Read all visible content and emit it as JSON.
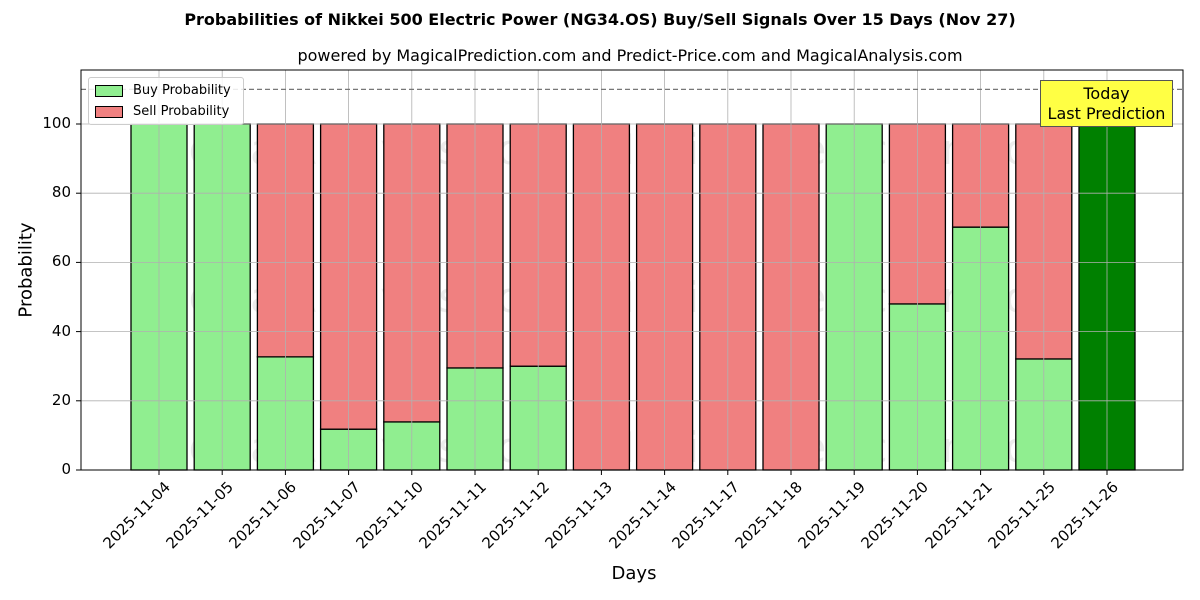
{
  "chart_data": {
    "type": "bar",
    "stacked": true,
    "title": "Probabilities of Nikkei 500 Electric Power (NG34.OS) Buy/Sell Signals Over 15 Days (Nov 27)",
    "subtitle": "powered by MagicalPrediction.com and Predict-Price.com and MagicalAnalysis.com",
    "xlabel": "Days",
    "ylabel": "Probability",
    "ylim": [
      0,
      115
    ],
    "yticks": [
      0,
      20,
      40,
      60,
      80,
      100
    ],
    "grid": true,
    "reference_line": 110,
    "legend_position": "upper left",
    "categories": [
      "2025-11-04",
      "2025-11-05",
      "2025-11-06",
      "2025-11-07",
      "2025-11-10",
      "2025-11-11",
      "2025-11-12",
      "2025-11-13",
      "2025-11-14",
      "2025-11-17",
      "2025-11-18",
      "2025-11-19",
      "2025-11-20",
      "2025-11-21",
      "2025-11-25",
      "2025-11-26"
    ],
    "series": [
      {
        "name": "Buy Probability",
        "color": "#90ee90",
        "values": [
          100,
          100,
          32.7,
          11.8,
          13.9,
          29.5,
          30.0,
          0,
          0,
          0,
          0,
          100,
          48.0,
          70.2,
          32.1,
          100
        ]
      },
      {
        "name": "Sell Probability",
        "color": "#f08080",
        "values": [
          0,
          0,
          67.3,
          88.2,
          86.1,
          70.5,
          70.0,
          100,
          100,
          100,
          100,
          0,
          52.0,
          29.8,
          67.9,
          0
        ]
      }
    ],
    "highlight": {
      "category": "2025-11-26",
      "color": "#008000",
      "label_line1": "Today",
      "label_line2": "Last Prediction"
    },
    "watermarks": [
      "MagicalAnalysis.com",
      "MagicalPrediction.com"
    ]
  }
}
